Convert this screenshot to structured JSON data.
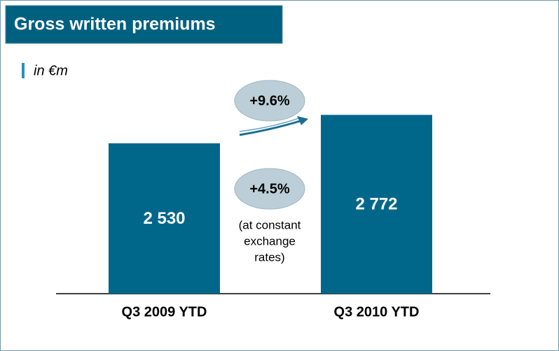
{
  "chart_data": {
    "type": "bar",
    "title": "Gross written premiums",
    "subtitle": "in €m",
    "categories": [
      "Q3 2009 YTD",
      "Q3 2010 YTD"
    ],
    "values": [
      2530,
      2772
    ],
    "value_labels": [
      "2 530",
      "2 772"
    ],
    "color": "#00678a",
    "ylim": [
      1250,
      2950
    ],
    "annotations": [
      "+9.6%",
      "+4.5%"
    ],
    "note": [
      "(at constant",
      "exchange",
      "rates)"
    ]
  }
}
